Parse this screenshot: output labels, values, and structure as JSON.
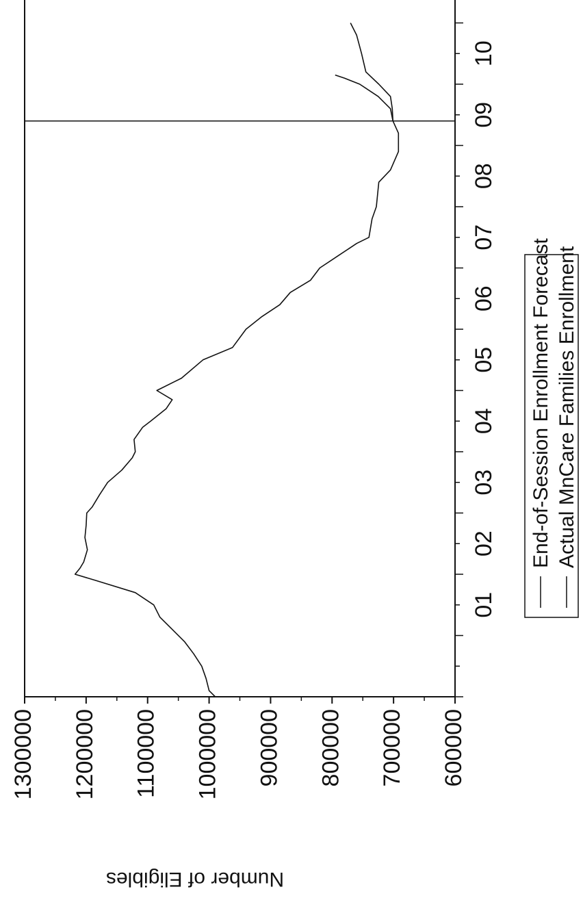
{
  "chart_data": {
    "type": "line",
    "orientation": "rotated-90-clockwise",
    "ylabel": "Number of Eligibles",
    "xlabel": "",
    "ylim": [
      600000,
      1300000
    ],
    "y_ticks": [
      "1300000",
      "1200000",
      "1100000",
      "1000000",
      "900000",
      "800000",
      "700000",
      "600000"
    ],
    "x_range": [
      2000.0,
      2011.0
    ],
    "x_ticks": [
      "01",
      "02",
      "03",
      "04",
      "05",
      "06",
      "07",
      "08",
      "09",
      "10"
    ],
    "vertical_marker_x": 2009.4,
    "grid": false,
    "legend_placement": "right",
    "legend": [
      "End-of-Session Enrollment Forecast",
      "Actual MnCare Families Enrollment"
    ],
    "series": [
      {
        "name": "Actual MnCare Families Enrollment",
        "x": [
          2000.0,
          2000.1,
          2000.3,
          2000.5,
          2000.7,
          2000.9,
          2001.1,
          2001.3,
          2001.5,
          2001.7,
          2001.9,
          2002.0,
          2002.1,
          2002.2,
          2002.4,
          2002.6,
          2002.8,
          2003.0,
          2003.1,
          2003.3,
          2003.5,
          2003.7,
          2003.9,
          2004.0,
          2004.2,
          2004.4,
          2004.5,
          2004.7,
          2004.85,
          2005.0,
          2005.2,
          2005.5,
          2005.7,
          2006.0,
          2006.2,
          2006.4,
          2006.6,
          2006.8,
          2007.0,
          2007.2,
          2007.4,
          2007.5,
          2007.8,
          2008.0,
          2008.2,
          2008.4,
          2008.6,
          2008.9,
          2009.2,
          2009.4,
          2009.6,
          2009.8,
          2010.0,
          2010.2,
          2010.5,
          2010.8,
          2011.0
        ],
        "y": [
          990000,
          1000000,
          1005000,
          1012000,
          1025000,
          1040000,
          1060000,
          1080000,
          1090000,
          1120000,
          1185000,
          1218000,
          1210000,
          1204000,
          1198000,
          1202000,
          1200000,
          1199000,
          1190000,
          1178000,
          1165000,
          1142000,
          1125000,
          1120000,
          1122000,
          1108000,
          1095000,
          1070000,
          1060000,
          1085000,
          1045000,
          1010000,
          962000,
          940000,
          915000,
          885000,
          868000,
          835000,
          820000,
          790000,
          760000,
          740000,
          735000,
          728000,
          726000,
          724000,
          705000,
          692000,
          692000,
          701000,
          702000,
          705000,
          724000,
          745000,
          752000,
          760000,
          770000
        ]
      },
      {
        "name": "End-of-Session Enrollment Forecast",
        "x": [
          2009.4,
          2009.6,
          2009.8,
          2010.0,
          2010.1,
          2010.15
        ],
        "y": [
          701000,
          705000,
          725000,
          755000,
          780000,
          795000
        ]
      }
    ]
  }
}
